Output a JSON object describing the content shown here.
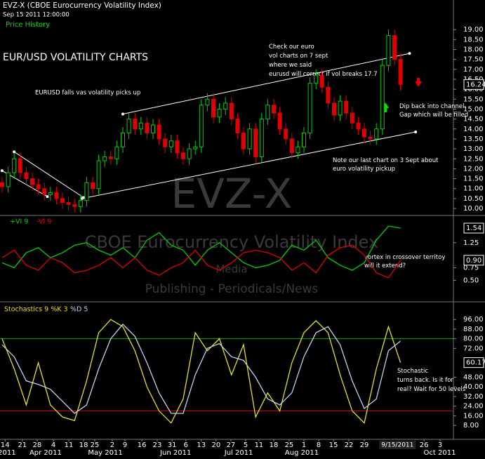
{
  "header": {
    "title": "EVZ-X (CBOE Eurocurrency Volatility Index)",
    "timestamp": "Sep 15 2011 12:00:00",
    "watermark": "EVZ-X",
    "watermark_sub": "CBOE Eurocurrency Volatility Index",
    "watermark_media": "Media",
    "watermark_pub": "Publishing - Periodicals/News"
  },
  "chart_data": [
    {
      "type": "candlestick",
      "legend": "Price History",
      "annotations": {
        "headline": "EUR/USD VOLATILITY CHARTS",
        "falls": "EURUSD falls vas volatility picks up",
        "check": [
          "Check our euro",
          "vol charts on 7 sept",
          "where we said",
          "eurusd will correct if vol breaks 17.7"
        ],
        "dip": [
          "Dip back into channel.",
          "Gap which will be filled"
        ],
        "note": [
          "Note our last chart on 3 Sept about",
          "euro volatility pickup"
        ]
      },
      "xlim": [
        0,
        150
      ],
      "ylim": [
        9.72,
        19.5
      ],
      "yticks": [
        {
          "value": 10,
          "label": "10.00"
        },
        {
          "value": 10.5,
          "label": "10.50"
        },
        {
          "value": 11,
          "label": "11.00"
        },
        {
          "value": 11.5,
          "label": "11.50"
        },
        {
          "value": 12,
          "label": "12.00"
        },
        {
          "value": 12.5,
          "label": "12.50"
        },
        {
          "value": 13,
          "label": "13.00"
        },
        {
          "value": 13.5,
          "label": "13.50"
        },
        {
          "value": 14,
          "label": "14.00"
        },
        {
          "value": 14.5,
          "label": "14.50"
        },
        {
          "value": 15,
          "label": "15.00"
        },
        {
          "value": 15.5,
          "label": "15.50"
        },
        {
          "value": 16,
          "label": "16.00"
        },
        {
          "value": 16.5,
          "label": "16.50"
        },
        {
          "value": 17,
          "label": "17.00"
        },
        {
          "value": 17.5,
          "label": "17.50"
        },
        {
          "value": 18,
          "label": "18.00"
        },
        {
          "value": 18.5,
          "label": "18.50"
        },
        {
          "value": 19,
          "label": "19.00"
        }
      ],
      "up_color": "#00d000",
      "down_color": "#e00000",
      "x": [
        0,
        2,
        4,
        6,
        8,
        10,
        12,
        14,
        16,
        18,
        20,
        22,
        24,
        26,
        28,
        30,
        32,
        34,
        36,
        38,
        40,
        42,
        44,
        46,
        48,
        50,
        52,
        54,
        56,
        58,
        60,
        62,
        64,
        66,
        68,
        70,
        72,
        74,
        76,
        78,
        80,
        82,
        84,
        86,
        88,
        90,
        92,
        94,
        96,
        98,
        100,
        102,
        104,
        106,
        108,
        110,
        112,
        114,
        116,
        118,
        120,
        122,
        124,
        126,
        128,
        130,
        132
      ],
      "open": [
        11.3,
        11.1,
        11.8,
        12.5,
        11.8,
        11.5,
        11.2,
        11.0,
        10.7,
        10.8,
        10.5,
        10.3,
        10.2,
        10.1,
        10.4,
        11.3,
        11.0,
        12.4,
        12.6,
        12.5,
        13.1,
        13.8,
        14.5,
        14.0,
        14.3,
        13.8,
        14.2,
        13.5,
        13.1,
        13.4,
        12.8,
        12.5,
        13.0,
        13.1,
        15.2,
        15.5,
        14.6,
        15.0,
        15.3,
        14.5,
        13.8,
        13.0,
        14.0,
        12.6,
        14.5,
        15.2,
        14.8,
        14.0,
        13.5,
        12.8,
        13.1,
        13.8,
        16.3,
        16.7,
        16.1,
        15.3,
        14.7,
        15.4,
        14.8,
        14.3,
        14.0,
        13.6,
        13.5,
        14.0,
        17.2,
        18.7,
        17.5
      ],
      "high": [
        11.6,
        12.1,
        12.8,
        12.8,
        12.1,
        11.8,
        11.5,
        11.3,
        11.1,
        11.1,
        10.8,
        10.6,
        10.5,
        10.7,
        11.6,
        11.6,
        12.7,
        12.9,
        12.9,
        13.4,
        14.1,
        14.8,
        14.8,
        14.6,
        14.6,
        14.5,
        14.5,
        13.8,
        13.7,
        13.7,
        13.1,
        13.3,
        13.4,
        15.5,
        15.8,
        15.8,
        15.3,
        15.6,
        15.6,
        14.8,
        14.1,
        14.3,
        14.3,
        14.8,
        15.5,
        15.5,
        15.1,
        14.3,
        13.8,
        13.4,
        14.1,
        16.6,
        17.0,
        17.0,
        16.4,
        15.6,
        15.7,
        15.7,
        15.1,
        14.6,
        14.3,
        13.9,
        14.3,
        17.5,
        19.0,
        19.0,
        17.8
      ],
      "low": [
        10.8,
        10.8,
        11.5,
        11.5,
        11.2,
        10.9,
        10.7,
        10.4,
        10.4,
        10.2,
        10.0,
        9.9,
        9.8,
        9.8,
        10.1,
        10.7,
        10.7,
        12.1,
        12.2,
        12.2,
        12.8,
        13.5,
        13.7,
        13.7,
        13.5,
        13.5,
        13.2,
        12.8,
        12.8,
        12.5,
        12.2,
        12.2,
        12.7,
        12.8,
        14.9,
        14.3,
        14.3,
        14.7,
        14.2,
        13.5,
        12.7,
        12.7,
        12.3,
        12.3,
        14.2,
        14.5,
        13.7,
        13.2,
        12.5,
        12.5,
        12.8,
        13.5,
        16.0,
        15.8,
        15.0,
        14.4,
        14.4,
        14.5,
        14.0,
        13.7,
        13.3,
        13.2,
        13.2,
        13.7,
        16.9,
        17.2,
        15.94
      ],
      "close": [
        11.1,
        11.8,
        12.5,
        11.8,
        11.5,
        11.2,
        11.0,
        10.7,
        10.8,
        10.5,
        10.3,
        10.2,
        10.1,
        10.4,
        11.3,
        11.0,
        12.4,
        12.6,
        12.5,
        13.1,
        13.8,
        14.5,
        14.0,
        14.3,
        13.8,
        14.2,
        13.5,
        13.1,
        13.4,
        12.8,
        12.5,
        13.0,
        13.1,
        15.2,
        15.5,
        14.6,
        15.0,
        15.3,
        14.5,
        13.8,
        13.0,
        14.0,
        12.6,
        14.5,
        15.2,
        14.8,
        14.0,
        13.5,
        12.8,
        13.1,
        13.8,
        16.3,
        16.7,
        16.1,
        15.3,
        14.7,
        15.4,
        14.8,
        14.3,
        14.0,
        13.6,
        13.5,
        14.0,
        17.2,
        18.7,
        17.5,
        16.24
      ],
      "trendlines": [
        {
          "x": [
            4,
            27
          ],
          "y": [
            12.85,
            10.55
          ]
        },
        {
          "x": [
            0,
            15
          ],
          "y": [
            11.9,
            10.6
          ]
        },
        {
          "x": [
            40,
            135
          ],
          "y": [
            14.75,
            17.8
          ]
        },
        {
          "x": [
            26.5,
            137
          ],
          "y": [
            10.5,
            13.85
          ]
        }
      ]
    },
    {
      "type": "line",
      "xlim": [
        0,
        150
      ],
      "ylim": [
        0.1,
        1.75
      ],
      "yticks": [
        {
          "value": 0.5,
          "label": "0.50"
        },
        {
          "value": 0.75,
          "label": "0.75"
        },
        {
          "value": 1.25,
          "label": "1.25"
        }
      ],
      "annotation": [
        "vortex in crossover territoy",
        "will it extend?"
      ],
      "x": [
        0,
        4,
        8,
        12,
        16,
        20,
        24,
        28,
        32,
        36,
        40,
        44,
        48,
        52,
        56,
        60,
        64,
        68,
        72,
        76,
        80,
        84,
        88,
        92,
        96,
        100,
        104,
        108,
        112,
        116,
        120,
        124,
        128,
        132
      ],
      "series": [
        {
          "name": "+VI 9",
          "color": "#00d000",
          "values": [
            0.85,
            0.75,
            1.05,
            1.15,
            0.95,
            1.05,
            1.2,
            1.25,
            1.1,
            1.0,
            1.15,
            0.95,
            1.3,
            1.45,
            1.2,
            1.1,
            0.8,
            1.1,
            1.25,
            1.05,
            0.85,
            0.75,
            0.8,
            0.9,
            1.2,
            1.1,
            1.3,
            0.95,
            0.8,
            0.7,
            0.85,
            1.3,
            1.58,
            1.54
          ]
        },
        {
          "name": "-VI 9",
          "color": "#e00000",
          "values": [
            0.95,
            1.1,
            0.8,
            0.7,
            0.95,
            0.85,
            0.65,
            0.7,
            0.8,
            0.95,
            0.75,
            0.95,
            0.7,
            0.6,
            0.75,
            0.85,
            1.1,
            0.8,
            0.7,
            0.85,
            1.05,
            1.1,
            1.05,
            0.95,
            0.7,
            0.85,
            0.65,
            1.0,
            1.15,
            1.2,
            1.0,
            0.65,
            0.55,
            0.9
          ],
          "value_labels": [
            null,
            null,
            null,
            null,
            null,
            null,
            null,
            null,
            null,
            null,
            null,
            null,
            null,
            null,
            null,
            null,
            null,
            null,
            null,
            null,
            null,
            null,
            null,
            null,
            null,
            null,
            null,
            null,
            null,
            null,
            null,
            null,
            null,
            "0.90"
          ]
        }
      ]
    },
    {
      "type": "line",
      "xlim": [
        0,
        150
      ],
      "ylim": [
        -3,
        109.5
      ],
      "yticks": [
        {
          "value": 8,
          "label": "8.00"
        },
        {
          "value": 16,
          "label": "16.00"
        },
        {
          "value": 24,
          "label": "24.00"
        },
        {
          "value": 32,
          "label": "32.00"
        },
        {
          "value": 40,
          "label": "40.00"
        },
        {
          "value": 48,
          "label": "48.00"
        },
        {
          "value": 72,
          "label": "72.00"
        },
        {
          "value": 80,
          "label": "80.00"
        },
        {
          "value": 88,
          "label": "88.00"
        },
        {
          "value": 96,
          "label": "96.00"
        }
      ],
      "levels": [
        {
          "value": 80,
          "color": "#00b000"
        },
        {
          "value": 20,
          "color": "#d00000"
        }
      ],
      "annotation": [
        "Stochastic",
        "turns back. Is it for",
        "real? Wait for 50 levels"
      ],
      "x": [
        0,
        4,
        8,
        12,
        16,
        20,
        24,
        28,
        32,
        36,
        40,
        44,
        48,
        52,
        56,
        60,
        64,
        68,
        72,
        76,
        80,
        84,
        88,
        92,
        96,
        100,
        104,
        108,
        112,
        116,
        120,
        124,
        128,
        132
      ],
      "series": [
        {
          "name": "Stochastics 9 %K 3",
          "color": "#e8e020",
          "values": [
            80,
            55,
            25,
            60,
            25,
            15,
            12,
            45,
            85,
            96,
            90,
            70,
            40,
            20,
            10,
            30,
            85,
            70,
            80,
            50,
            75,
            15,
            35,
            20,
            60,
            85,
            95,
            85,
            50,
            20,
            10,
            55,
            90,
            60.17
          ]
        },
        {
          "name": "%D 5",
          "color": "#b8d8f0",
          "values": [
            75,
            65,
            45,
            42,
            38,
            28,
            18,
            25,
            55,
            80,
            92,
            82,
            60,
            35,
            18,
            18,
            50,
            72,
            76,
            65,
            62,
            48,
            30,
            25,
            35,
            65,
            85,
            90,
            75,
            45,
            22,
            30,
            70,
            78
          ]
        }
      ],
      "xticks": [
        {
          "value": 1,
          "label": "14"
        },
        {
          "value": 6.7,
          "label": "21"
        },
        {
          "value": 11.6,
          "label": "28"
        },
        {
          "value": 17,
          "label": "4"
        },
        {
          "value": 22.1,
          "label": "11"
        },
        {
          "value": 27,
          "label": "18"
        },
        {
          "value": 30.7,
          "label": "25"
        },
        {
          "value": 36.5,
          "label": "2"
        },
        {
          "value": 40.7,
          "label": "9"
        },
        {
          "value": 46.3,
          "label": "16"
        },
        {
          "value": 51.4,
          "label": "23"
        },
        {
          "value": 56.3,
          "label": "31"
        },
        {
          "value": 60.9,
          "label": "6"
        },
        {
          "value": 66,
          "label": "13"
        },
        {
          "value": 70.9,
          "label": "20"
        },
        {
          "value": 75.8,
          "label": "27"
        },
        {
          "value": 80.7,
          "label": "5"
        },
        {
          "value": 85.1,
          "label": "11"
        },
        {
          "value": 90,
          "label": "18"
        },
        {
          "value": 95.1,
          "label": "25"
        },
        {
          "value": 100,
          "label": "1"
        },
        {
          "value": 104.9,
          "label": "8"
        },
        {
          "value": 109.8,
          "label": "15"
        },
        {
          "value": 114.9,
          "label": "22"
        },
        {
          "value": 120,
          "label": "29"
        },
        {
          "value": 139.8,
          "label": "26"
        },
        {
          "value": 145.1,
          "label": "3"
        }
      ],
      "month_ticks": [
        {
          "value": 1.6,
          "label": "2011"
        },
        {
          "value": 14.4,
          "label": "Apr 2011"
        },
        {
          "value": 34.2,
          "label": "May 2011"
        },
        {
          "value": 57.5,
          "label": "Jun 2011"
        },
        {
          "value": 78.4,
          "label": "Jul 2011"
        },
        {
          "value": 99.3,
          "label": "Aug 2011"
        },
        {
          "value": 145,
          "label": "Oct 2011"
        }
      ],
      "cursor": {
        "value": 131,
        "label": "9/15/2011"
      }
    }
  ]
}
